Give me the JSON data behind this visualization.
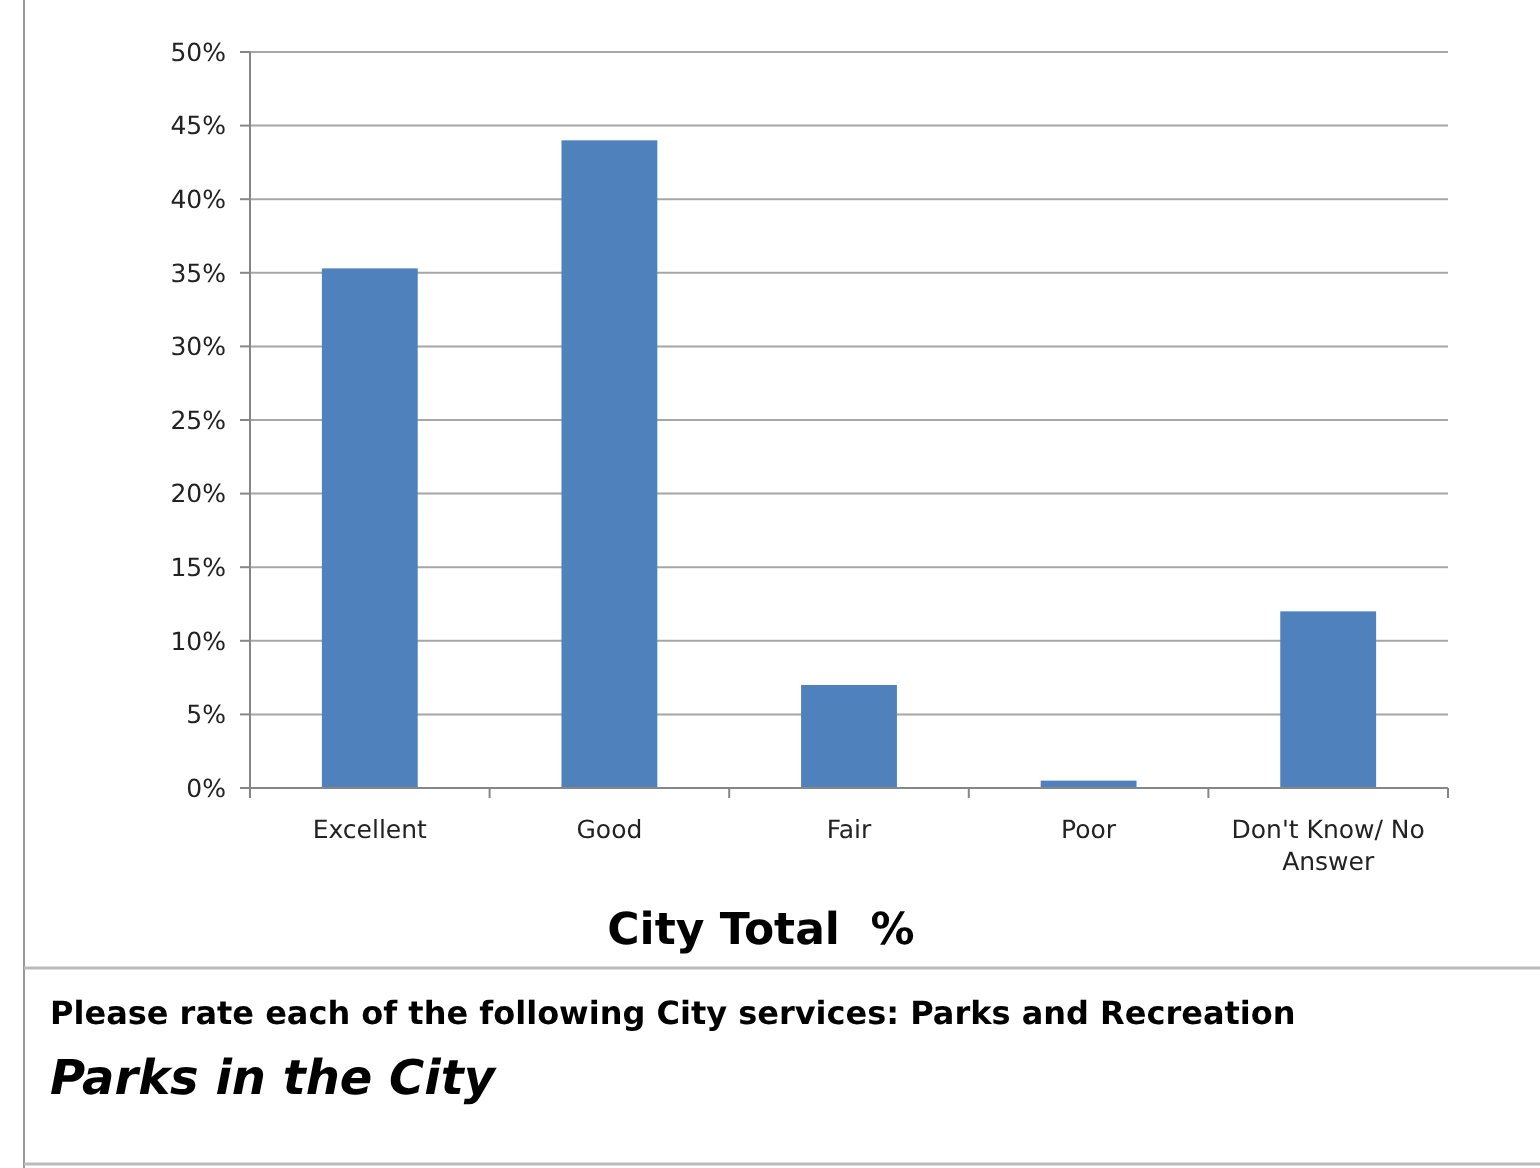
{
  "chart_data": {
    "type": "bar",
    "title": "Parks in the City",
    "subtitle": "Please rate each of the following City services: Parks and Recreation",
    "xlabel": "City Total  %",
    "categories": [
      "Excellent",
      "Good",
      "Fair",
      "Poor",
      "Don't Know/ No Answer"
    ],
    "values": [
      35.3,
      44,
      7,
      0.5,
      12
    ],
    "color": "#4f81bd",
    "ylim": [
      0,
      50
    ],
    "yticks": [
      {
        "value": 0,
        "label": "0%"
      },
      {
        "value": 5,
        "label": "5%"
      },
      {
        "value": 10,
        "label": "10%"
      },
      {
        "value": 15,
        "label": "15%"
      },
      {
        "value": 20,
        "label": "20%"
      },
      {
        "value": 25,
        "label": "25%"
      },
      {
        "value": 30,
        "label": "30%"
      },
      {
        "value": 35,
        "label": "35%"
      },
      {
        "value": 40,
        "label": "40%"
      },
      {
        "value": 45,
        "label": "45%"
      },
      {
        "value": 50,
        "label": "50%"
      }
    ],
    "grid": "y"
  }
}
